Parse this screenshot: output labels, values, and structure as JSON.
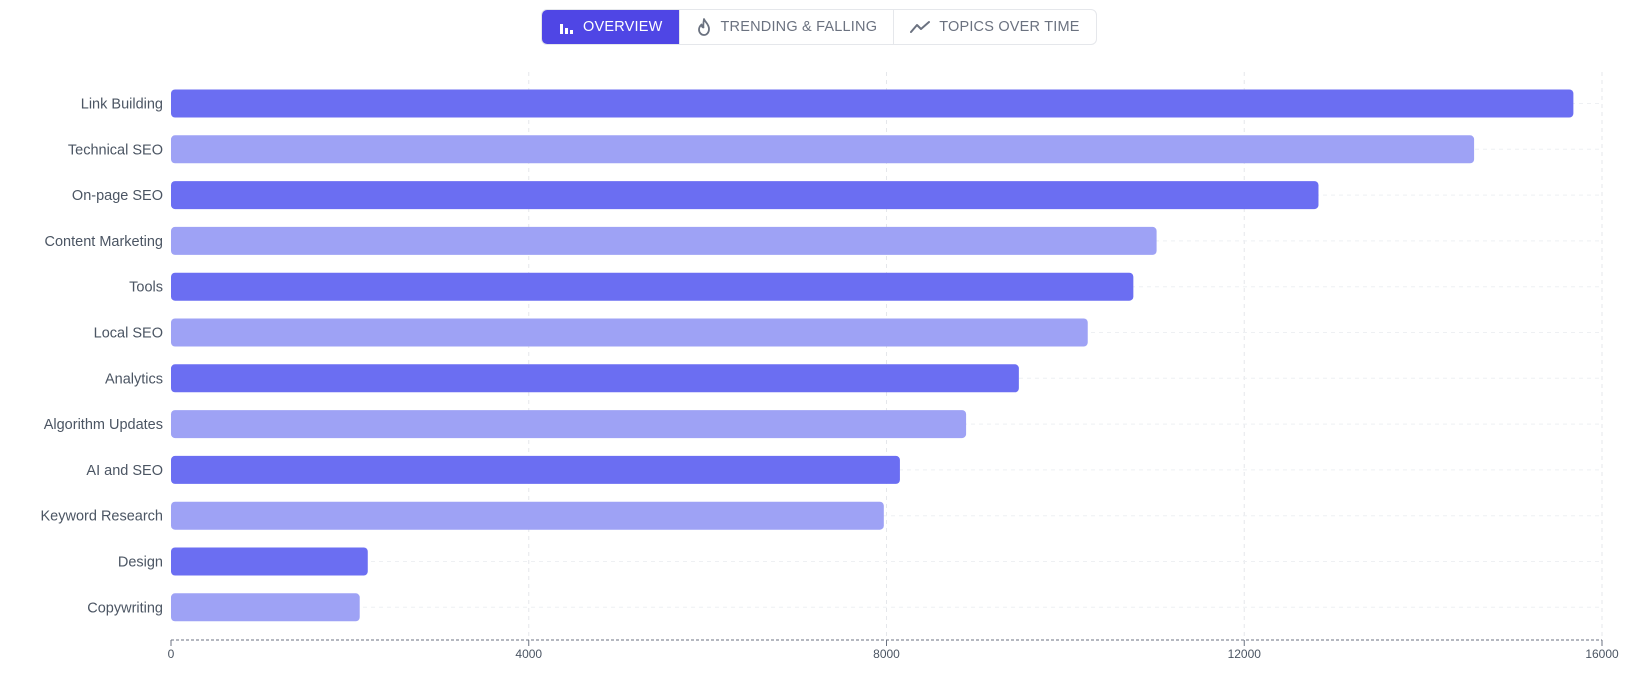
{
  "tabs": [
    {
      "label": "OVERVIEW",
      "icon": "bar-chart-icon",
      "active": true
    },
    {
      "label": "TRENDING & FALLING",
      "icon": "flame-icon",
      "active": false
    },
    {
      "label": "TOPICS OVER TIME",
      "icon": "trend-line-icon",
      "active": false
    }
  ],
  "colors": {
    "accent": "#4f46e5",
    "bar_dark": "#6b6ef2",
    "bar_light": "#9ea2f5"
  },
  "chart_data": {
    "type": "bar",
    "orientation": "horizontal",
    "categories": [
      "Link Building",
      "Technical SEO",
      "On-page SEO",
      "Content Marketing",
      "Tools",
      "Local SEO",
      "Analytics",
      "Algorithm Updates",
      "AI and SEO",
      "Keyword Research",
      "Design",
      "Copywriting"
    ],
    "values": [
      15680,
      14570,
      12830,
      11020,
      10760,
      10250,
      9480,
      8890,
      8150,
      7970,
      2200,
      2110
    ],
    "xticks": [
      "0",
      "4000",
      "8000",
      "12000",
      "16000"
    ],
    "xlim": [
      0,
      16000
    ],
    "grid": true,
    "bar_colors": "alternating"
  }
}
